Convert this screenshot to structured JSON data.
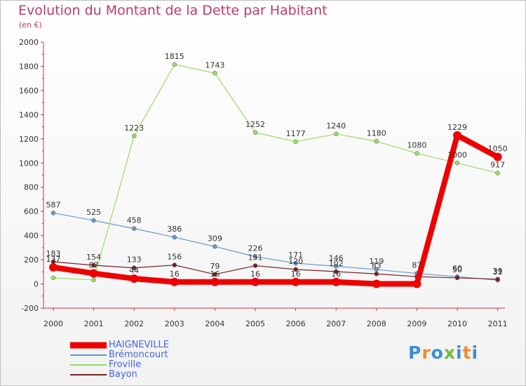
{
  "chart_data": {
    "type": "line",
    "title": "Evolution du Montant de la Dette par Habitant",
    "subtitle": "(en €)",
    "x": [
      "2000",
      "2001",
      "2002",
      "2003",
      "2004",
      "2005",
      "2006",
      "2007",
      "2008",
      "2009",
      "2010",
      "2011"
    ],
    "ylim": [
      -200,
      2000
    ],
    "yticks": [
      "-200",
      "0",
      "200",
      "400",
      "600",
      "800",
      "1000",
      "1200",
      "1400",
      "1600",
      "1800",
      "2000"
    ],
    "grid": false,
    "legend_position": "bottom-left",
    "series": [
      {
        "name": "HAIGNEVILLE",
        "color": "#ee0000",
        "values": [
          137,
          87,
          44,
          16,
          16,
          16,
          16,
          16,
          0,
          0,
          1229,
          1050
        ],
        "labels": [
          "137",
          "87",
          "44",
          "16",
          "16",
          "16",
          "16",
          "16",
          "",
          "",
          "1229",
          "1050"
        ]
      },
      {
        "name": "Brémoncourt",
        "color": "#6699cc",
        "values": [
          587,
          525,
          458,
          386,
          309,
          226,
          171,
          146,
          119,
          87,
          60,
          31
        ],
        "labels": [
          "587",
          "525",
          "458",
          "386",
          "309",
          "226",
          "171",
          "146",
          "119",
          "87",
          "60",
          "31"
        ]
      },
      {
        "name": "Froville",
        "color": "#99dd66",
        "values": [
          50,
          33,
          1223,
          1815,
          1743,
          1252,
          1177,
          1240,
          1180,
          1080,
          1000,
          917
        ],
        "labels": [
          "",
          "",
          "1223",
          "1815",
          "1743",
          "1252",
          "1177",
          "1240",
          "1180",
          "1080",
          "1000",
          "917"
        ]
      },
      {
        "name": "Bayon",
        "color": "#772222",
        "values": [
          183,
          154,
          133,
          156,
          79,
          151,
          120,
          102,
          83,
          60,
          50,
          39
        ],
        "labels": [
          "183",
          "154",
          "133",
          "156",
          "79",
          "151",
          "120",
          "102",
          "83",
          "",
          "50",
          "39"
        ]
      }
    ]
  },
  "logo": {
    "text": "Proxiti",
    "colors": [
      "#3a8fd6",
      "#f28c28",
      "#3a8fd6",
      "#6cbf3a",
      "#3a8fd6",
      "#f28c28",
      "#3a8fd6"
    ]
  }
}
